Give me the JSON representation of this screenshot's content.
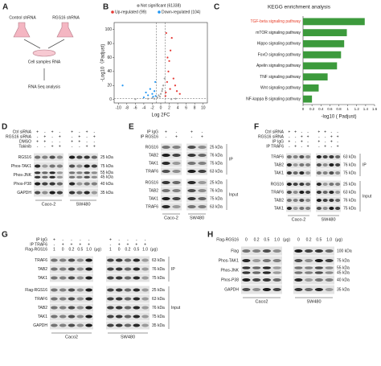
{
  "panel_a": {
    "label": "A",
    "left": "Control shRNA",
    "right": "RGS16 shRNA",
    "middle": "Cell samples RNA",
    "bottom": "RNA Seq analysis"
  },
  "chart_data": [
    {
      "type": "scatter",
      "panel_label": "B",
      "xlabel": "Log 2FC",
      "ylabel": "-Log10（Padjust)",
      "xlim": [
        -11,
        11
      ],
      "ylim": [
        -5,
        110
      ],
      "xticks": [
        -10,
        -8,
        -6,
        -4,
        -2,
        0,
        2,
        4,
        6,
        8,
        10
      ],
      "yticks": [
        0,
        20,
        40,
        60,
        80,
        100
      ],
      "threshold_x": [
        -1,
        1
      ],
      "threshold_y": 1.3,
      "series": [
        {
          "name": "Not significant (61338)",
          "color": "#9e9e9e",
          "x": [
            -3,
            -2,
            -1.5,
            -0.8,
            -0.5,
            0,
            0.3,
            0.6,
            0.9,
            -0.2,
            0.4,
            2.5,
            3.5,
            -6
          ],
          "values": [
            1,
            2,
            1,
            3,
            6,
            8,
            12,
            20,
            30,
            4,
            15,
            0.5,
            1,
            0.5
          ]
        },
        {
          "name": "Up-regulated (99)",
          "color": "#e53935",
          "x": [
            1.2,
            1.5,
            1.8,
            2,
            2.3,
            2.6,
            3,
            3.4,
            3.8,
            1.1,
            1.3,
            2.2,
            4.5,
            1.6
          ],
          "values": [
            10,
            25,
            40,
            55,
            70,
            88,
            30,
            20,
            12,
            5,
            95,
            15,
            8,
            60
          ]
        },
        {
          "name": "Down-regulated (104)",
          "color": "#2196f3",
          "x": [
            -1.2,
            -1.5,
            -2,
            -2.5,
            -3,
            -3.5,
            -9,
            -1.3,
            -1.8,
            -4
          ],
          "values": [
            5,
            12,
            8,
            15,
            6,
            10,
            20,
            25,
            4,
            3
          ]
        }
      ]
    },
    {
      "type": "bar",
      "panel_label": "C",
      "title": "KEGG enrichment analysis",
      "xlabel": "-log10 ( Padjust)",
      "categories": [
        "TGF-beta signaling pathway",
        "mTOR signaling pathway",
        "Hippo signaling pathway",
        "FoxO signaling pathway",
        "Apelin signaling pathway",
        "TNF signaling pathway",
        "Wnt signaling pathway",
        "NF-kappa B signaling pathway"
      ],
      "values": [
        1.38,
        0.98,
        0.92,
        0.85,
        0.76,
        0.55,
        0.35,
        0.2
      ],
      "color": "#3c9a3c",
      "highlight_index": 0,
      "highlight_color": "#e8412c",
      "xlim": [
        0,
        1.6
      ],
      "xticks": [
        0,
        0.2,
        0.4,
        0.6,
        0.8,
        1,
        1.2,
        1.4,
        1.6
      ]
    }
  ],
  "panel_d": {
    "label": "D",
    "conditions": [
      {
        "name": "Ctrl siRNA",
        "marks": [
          "+",
          "-",
          "+",
          "-",
          "+",
          "-",
          "+",
          "-"
        ]
      },
      {
        "name": "RGS16 siRNA",
        "marks": [
          "-",
          "+",
          "-",
          "+",
          "-",
          "+",
          "-",
          "+"
        ]
      },
      {
        "name": "DMSO",
        "marks": [
          "+",
          "+",
          "-",
          "-",
          "+",
          "+",
          "-",
          "-"
        ]
      },
      {
        "name": "Takinib",
        "marks": [
          "-",
          "-",
          "+",
          "+",
          "-",
          "-",
          "+",
          "+"
        ]
      }
    ],
    "sections": [
      {
        "blots": [
          {
            "name": "RGS16",
            "sizes": [
              "25 kDa"
            ]
          },
          {
            "name": "Phos-TAK1",
            "sizes": [
              "75 kDa"
            ]
          },
          {
            "name": "Phos-JNK",
            "sizes": [
              "55 kDa",
              "45 kDa"
            ]
          },
          {
            "name": "Phos-P38",
            "sizes": [
              "40 kDa"
            ]
          },
          {
            "name": "GAPDH",
            "sizes": [
              "35 kDa"
            ]
          }
        ]
      }
    ],
    "groups": [
      "Caco-2",
      "SW480"
    ]
  },
  "panel_e": {
    "label": "E",
    "conditions": [
      {
        "name": "IP IgG",
        "marks": [
          "+",
          "-",
          "+",
          "-"
        ]
      },
      {
        "name": "IP RGS16",
        "marks": [
          "-",
          "+",
          "-",
          "+"
        ]
      }
    ],
    "sections": [
      {
        "name": "IP",
        "blots": [
          {
            "name": "RGS16",
            "sizes": [
              "25 kDa"
            ]
          },
          {
            "name": "TAB2",
            "sizes": [
              "76 kDa"
            ]
          },
          {
            "name": "TAK1",
            "sizes": [
              "75 kDa"
            ]
          },
          {
            "name": "TRAF6",
            "sizes": [
              "63 kDa"
            ]
          }
        ]
      },
      {
        "name": "Input",
        "blots": [
          {
            "name": "RGS16",
            "sizes": [
              "25 kDa"
            ]
          },
          {
            "name": "TAB2",
            "sizes": [
              "76 kDa"
            ]
          },
          {
            "name": "TAK1",
            "sizes": [
              "75 kDa"
            ]
          },
          {
            "name": "TRAF6",
            "sizes": [
              "63 kDa"
            ]
          }
        ]
      }
    ],
    "groups": [
      "Caco-2",
      "SW480"
    ]
  },
  "panel_f": {
    "label": "F",
    "conditions": [
      {
        "name": "Ctrl siRNA",
        "marks": [
          "+",
          "+",
          "-",
          "-",
          "+",
          "+",
          "-",
          "-"
        ]
      },
      {
        "name": "RGS16 siRNA",
        "marks": [
          "-",
          "-",
          "+",
          "+",
          "-",
          "-",
          "+",
          "+"
        ]
      },
      {
        "name": "IP IgG",
        "marks": [
          "+",
          "-",
          "+",
          "-",
          "+",
          "-",
          "+",
          "-"
        ]
      },
      {
        "name": "IP TRAF6",
        "marks": [
          "-",
          "+",
          "-",
          "+",
          "-",
          "+",
          "-",
          "+"
        ]
      }
    ],
    "sections": [
      {
        "name": "IP",
        "blots": [
          {
            "name": "TRAF6",
            "sizes": [
              "63 kDa"
            ]
          },
          {
            "name": "TAB2",
            "sizes": [
              "76 kDa"
            ]
          },
          {
            "name": "TAK1",
            "sizes": [
              "75 kDa"
            ]
          }
        ]
      },
      {
        "name": "Input",
        "blots": [
          {
            "name": "RGS16",
            "sizes": [
              "25 kDa"
            ]
          },
          {
            "name": "TRAF6",
            "sizes": [
              "63 kDa"
            ]
          },
          {
            "name": "TAB2",
            "sizes": [
              "76 kDa"
            ]
          },
          {
            "name": "TAK1",
            "sizes": [
              "75 kDa"
            ]
          }
        ]
      }
    ],
    "groups": [
      "Caco-2",
      "SW480"
    ]
  },
  "panel_g": {
    "label": "G",
    "conditions": [
      {
        "name": "IP IgG",
        "marks": [
          "+",
          "-",
          "-",
          "-",
          "-",
          "+",
          "-",
          "-",
          "-",
          "-"
        ]
      },
      {
        "name": "IP TRAF6",
        "marks": [
          "-",
          "+",
          "+",
          "+",
          "+",
          "-",
          "+",
          "+",
          "+",
          "+"
        ]
      },
      {
        "name": "Flag-RGS16",
        "marks": [
          "1",
          "0",
          "0.2",
          "0.5",
          "1.0",
          "1",
          "0",
          "0.2",
          "0.5",
          "1.0"
        ],
        "unit": "(μg)"
      }
    ],
    "sections": [
      {
        "name": "IP",
        "blots": [
          {
            "name": "TRAF6",
            "sizes": [
              "63 kDa"
            ]
          },
          {
            "name": "TAB2",
            "sizes": [
              "76 kDa"
            ]
          },
          {
            "name": "TAK1",
            "sizes": [
              "75 kDa"
            ]
          }
        ]
      },
      {
        "name": "Input",
        "blots": [
          {
            "name": "Flag-RGS16",
            "sizes": [
              "25 kDa"
            ]
          },
          {
            "name": "TRAF6",
            "sizes": [
              "63 kDa"
            ]
          },
          {
            "name": "TAB2",
            "sizes": [
              "76 kDa"
            ]
          },
          {
            "name": "TAK1",
            "sizes": [
              "75 kDa"
            ]
          },
          {
            "name": "GAPDH",
            "sizes": [
              "35 kDa"
            ]
          }
        ]
      }
    ],
    "groups": [
      "Caco2",
      "SW480"
    ]
  },
  "panel_h": {
    "label": "H",
    "conditions": [
      {
        "name": "Flag-RGS16",
        "marks": [
          "0",
          "0.2",
          "0.5",
          "1.0",
          "0",
          "0.2",
          "0.5",
          "1.0"
        ],
        "unit": "(μg)"
      }
    ],
    "sections": [
      {
        "blots": [
          {
            "name": "Flag",
            "sizes": [
              "100 kDa"
            ]
          },
          {
            "name": "Phos-TAK1",
            "sizes": [
              "75 kDa"
            ]
          },
          {
            "name": "Phos-JNK",
            "sizes": [
              "55 kDa",
              "45 kDa"
            ]
          },
          {
            "name": "Phos-P38",
            "sizes": [
              "40 kDa"
            ]
          },
          {
            "name": "GAPDH",
            "sizes": [
              "35 kDa"
            ]
          }
        ]
      }
    ],
    "groups": [
      "Caco2",
      "SW480"
    ]
  }
}
